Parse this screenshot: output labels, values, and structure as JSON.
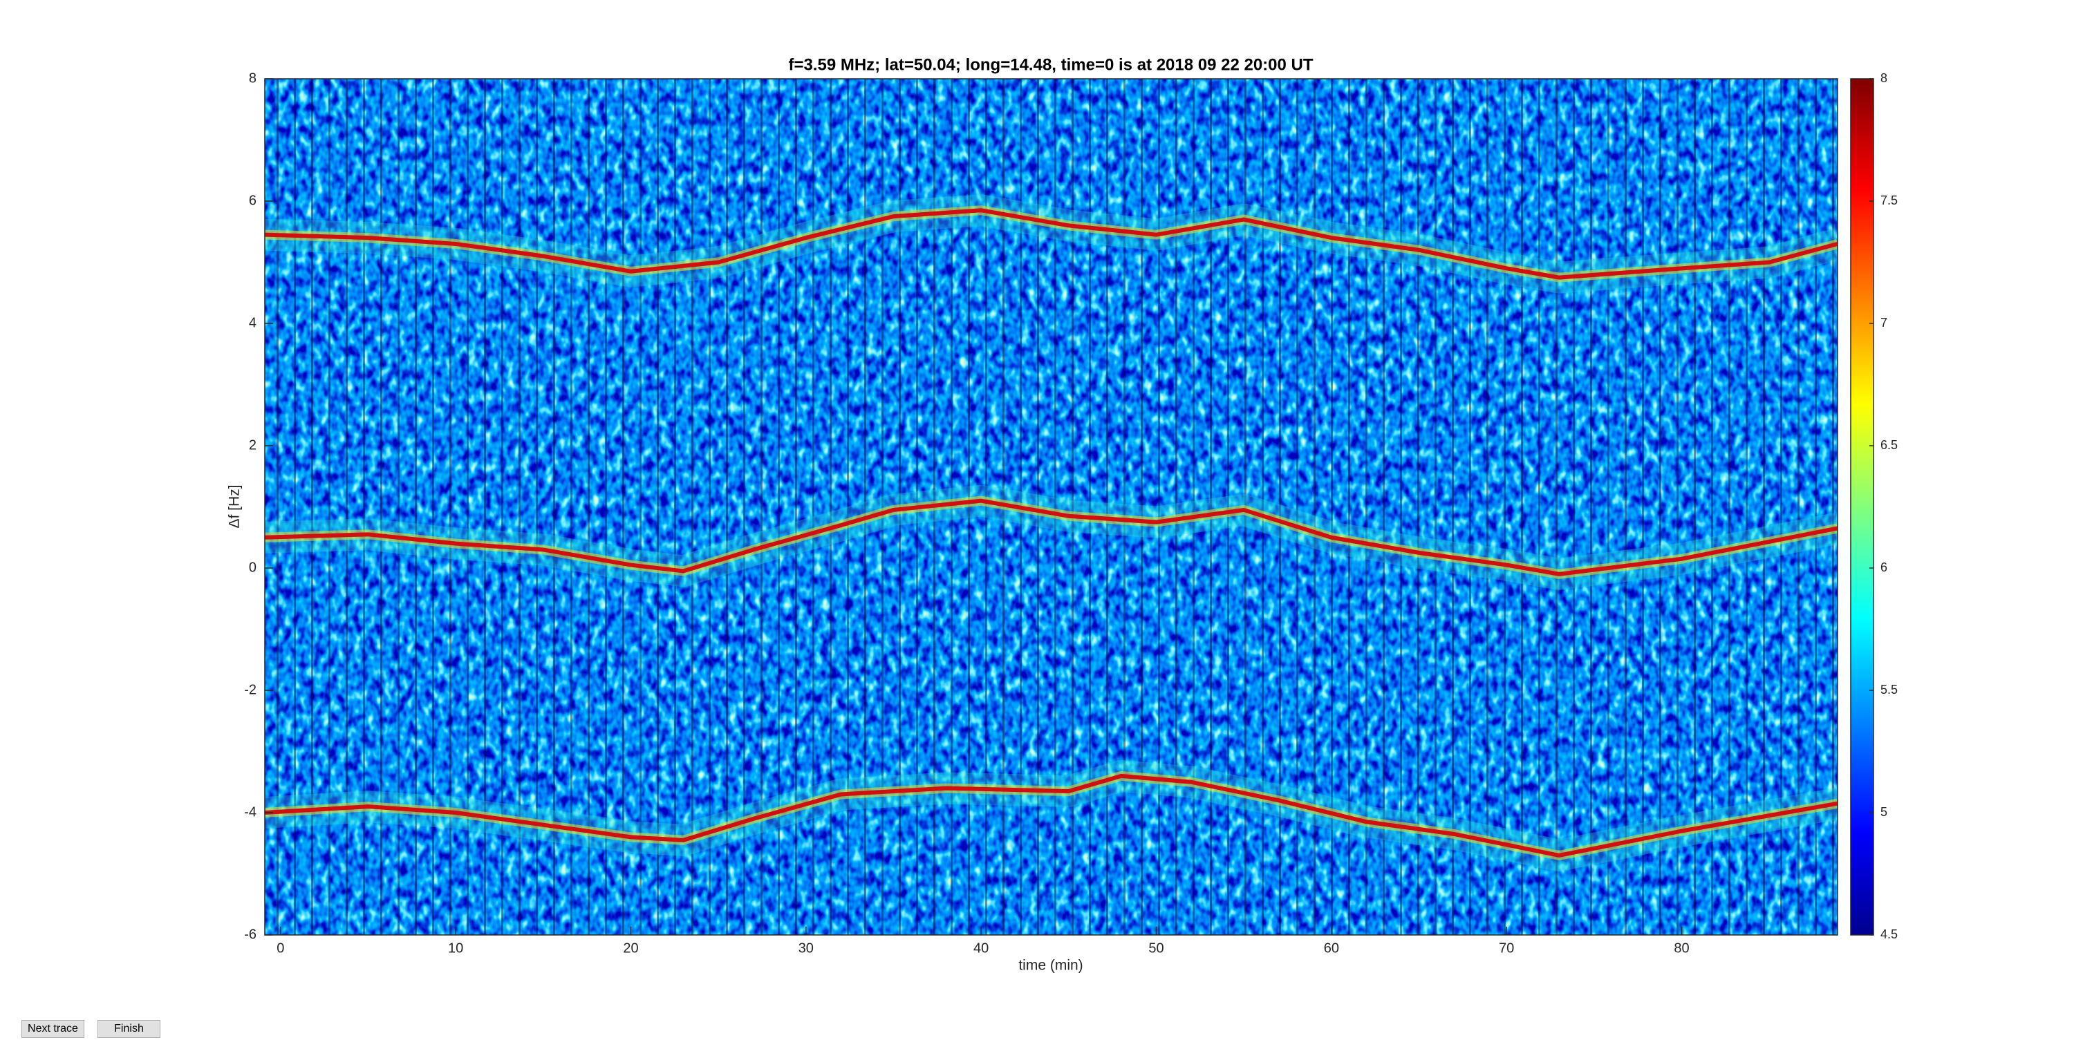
{
  "chart_data": {
    "type": "heatmap",
    "title": "f=3.59 MHz;  lat=50.04; long=14.48, time=0 is at 2018 09 22 20:00 UT",
    "xlabel": "time (min)",
    "ylabel": "Δf [Hz]",
    "xlim": [
      -0.9,
      88.9
    ],
    "xticks": [
      0,
      10,
      20,
      30,
      40,
      50,
      60,
      70,
      80
    ],
    "ylim": [
      -6,
      8
    ],
    "yticks": [
      -6,
      -4,
      -2,
      0,
      2,
      4,
      6,
      8
    ],
    "clim": [
      4.5,
      8
    ],
    "cticks": [
      4.5,
      5,
      5.5,
      6,
      6.5,
      7,
      7.5,
      8
    ],
    "series": [
      {
        "color": "#d01010",
        "x": [
          -0.9,
          5,
          10,
          15,
          20,
          25,
          30,
          35,
          40,
          45,
          50,
          55,
          60,
          65,
          70,
          73,
          80,
          85,
          88.9
        ],
        "values": [
          5.45,
          5.4,
          5.3,
          5.1,
          4.85,
          5.0,
          5.4,
          5.75,
          5.85,
          5.6,
          5.45,
          5.7,
          5.4,
          5.2,
          4.9,
          4.75,
          4.9,
          5.0,
          5.3
        ]
      },
      {
        "color": "#d01010",
        "x": [
          -0.9,
          5,
          10,
          15,
          20,
          23,
          27,
          32,
          35,
          40,
          45,
          50,
          55,
          60,
          65,
          70,
          73,
          80,
          88.9
        ],
        "values": [
          0.5,
          0.55,
          0.4,
          0.3,
          0.05,
          -0.05,
          0.3,
          0.7,
          0.95,
          1.1,
          0.85,
          0.75,
          0.95,
          0.5,
          0.25,
          0.05,
          -0.1,
          0.15,
          0.65
        ]
      },
      {
        "color": "#d01010",
        "x": [
          -0.9,
          5,
          10,
          15,
          20,
          23,
          27,
          32,
          38,
          45,
          48,
          52,
          57,
          62,
          67,
          73,
          80,
          88.9
        ],
        "values": [
          -4.0,
          -3.9,
          -4.0,
          -4.2,
          -4.4,
          -4.45,
          -4.1,
          -3.7,
          -3.6,
          -3.65,
          -3.4,
          -3.5,
          -3.8,
          -4.15,
          -4.35,
          -4.7,
          -4.3,
          -3.85
        ]
      }
    ]
  },
  "buttons": [
    "Next trace",
    "Finish"
  ]
}
